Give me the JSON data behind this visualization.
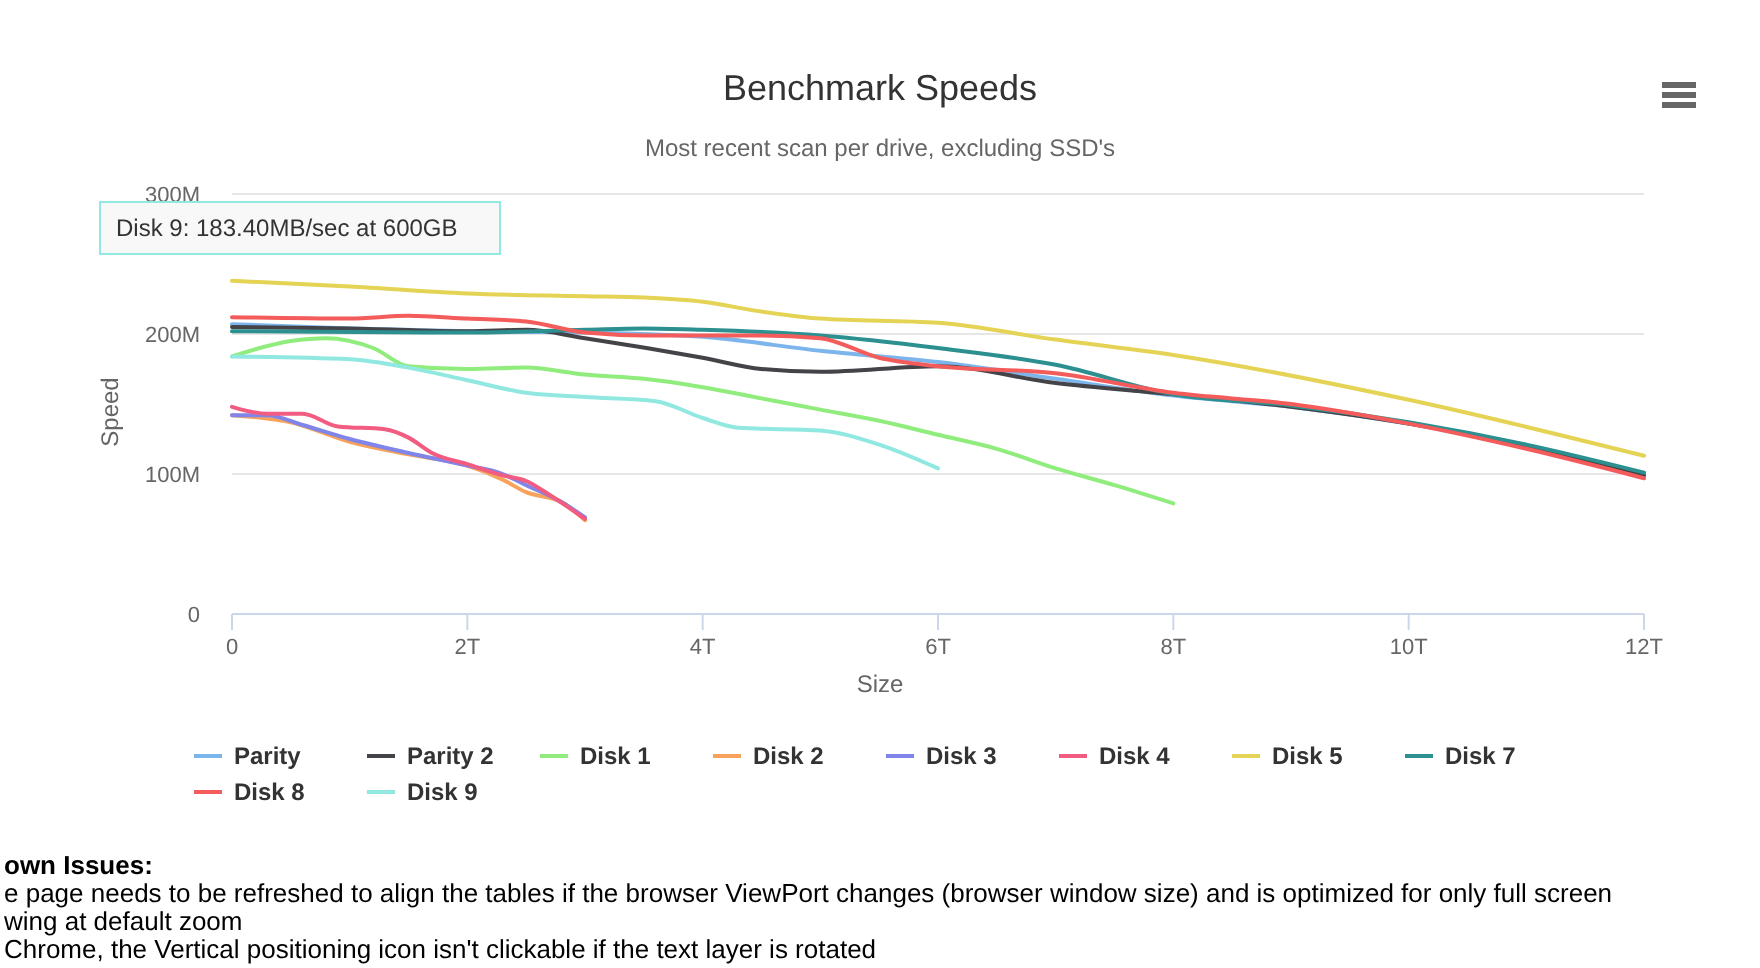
{
  "chart_data": {
    "type": "line",
    "title": "Benchmark Speeds",
    "subtitle": "Most recent scan per drive, excluding SSD's",
    "xlabel": "Size",
    "ylabel": "Speed",
    "xlim": [
      0,
      12
    ],
    "xticks": [
      0,
      {
        "value": 2,
        "label": "2T"
      },
      {
        "value": 4,
        "label": "4T"
      },
      {
        "value": 6,
        "label": "6T"
      },
      {
        "value": 8,
        "label": "8T"
      },
      {
        "value": 10,
        "label": "10T"
      },
      {
        "value": 12,
        "label": "12T"
      }
    ],
    "ylim": [
      0,
      300
    ],
    "yticks": [
      0,
      {
        "value": 100,
        "label": "100M"
      },
      {
        "value": 200,
        "label": "200M"
      },
      {
        "value": 300,
        "label": "300M"
      }
    ],
    "grid": "y",
    "legend": "bottom",
    "marker": "none",
    "line_style": "solid",
    "series": [
      {
        "name": "Parity",
        "color": "#7cb5ec",
        "x": [
          0,
          1,
          2,
          3,
          4,
          5,
          6,
          7,
          8,
          9,
          10,
          11,
          12
        ],
        "values": [
          207,
          204,
          202,
          201,
          198,
          188,
          180,
          168,
          156,
          148,
          136,
          120,
          100
        ]
      },
      {
        "name": "Parity 2",
        "color": "#434348",
        "x": [
          0,
          1,
          2,
          2.5,
          3,
          4,
          4.5,
          5,
          6,
          7,
          8,
          9,
          10,
          11,
          12
        ],
        "values": [
          205,
          204,
          202,
          203,
          197,
          183,
          175,
          173,
          177,
          165,
          157,
          148,
          136,
          120,
          99
        ]
      },
      {
        "name": "Disk 1",
        "color": "#90ed7d",
        "x": [
          0,
          0.5,
          0.8,
          1.2,
          1.5,
          2,
          2.5,
          3,
          3.5,
          4,
          4.5,
          5,
          5.5,
          6,
          6.5,
          7,
          7.5,
          8
        ],
        "values": [
          184,
          195,
          197,
          190,
          177,
          175,
          176,
          171,
          168,
          162,
          154,
          146,
          138,
          128,
          118,
          104,
          92,
          79
        ]
      },
      {
        "name": "Disk 2",
        "color": "#f7a35c",
        "x": [
          0,
          0.5,
          1,
          1.5,
          2,
          2.3,
          2.5,
          2.8,
          3
        ],
        "values": [
          142,
          137,
          123,
          114,
          106,
          96,
          87,
          80,
          67
        ]
      },
      {
        "name": "Disk 3",
        "color": "#8085e9",
        "x": [
          0,
          0.3,
          0.6,
          1,
          1.5,
          2,
          2.3,
          2.5,
          2.8,
          3
        ],
        "values": [
          142,
          142,
          135,
          125,
          115,
          106,
          100,
          92,
          80,
          69
        ]
      },
      {
        "name": "Disk 4",
        "color": "#f15c80",
        "x": [
          0,
          0.3,
          0.6,
          0.9,
          1.3,
          1.5,
          1.7,
          2,
          2.3,
          2.5,
          2.7,
          3
        ],
        "values": [
          148,
          143,
          143,
          134,
          132,
          126,
          115,
          107,
          99,
          95,
          85,
          68
        ]
      },
      {
        "name": "Disk 5",
        "color": "#e4d354",
        "x": [
          0,
          1,
          2,
          3,
          3.5,
          4,
          4.5,
          5,
          6,
          7,
          8,
          10,
          12
        ],
        "values": [
          238,
          234,
          229,
          227,
          226,
          223,
          216,
          211,
          208,
          196,
          185,
          153,
          113
        ]
      },
      {
        "name": "Disk 7",
        "color": "#2b908f",
        "x": [
          0,
          2,
          3,
          3.5,
          4,
          5,
          6,
          7,
          8,
          9,
          10,
          11,
          12
        ],
        "values": [
          202,
          201,
          203,
          204,
          203,
          199,
          190,
          178,
          157,
          149,
          137,
          121,
          101
        ]
      },
      {
        "name": "Disk 8",
        "color": "#f45b5b",
        "x": [
          0,
          1,
          1.5,
          2,
          2.5,
          3,
          3.5,
          4,
          4.5,
          5,
          5.5,
          6,
          7,
          8,
          9,
          10,
          11,
          12
        ],
        "values": [
          212,
          211,
          213,
          211,
          209,
          201,
          199,
          199,
          199,
          197,
          183,
          177,
          172,
          158,
          150,
          136,
          118,
          97
        ]
      },
      {
        "name": "Disk 9",
        "color": "#91e8e1",
        "x": [
          0,
          1,
          1.5,
          2,
          2.5,
          3,
          3.6,
          4,
          4.3,
          5,
          5.5,
          6
        ],
        "values": [
          184,
          182,
          176,
          167,
          158,
          155,
          152,
          140,
          133,
          131,
          121,
          104
        ]
      }
    ],
    "annotations": [
      "Disk 9: 183.40MB/sec at 600GB",
      "own Issues:",
      "e page needs to be refreshed to align the tables if the browser ViewPort changes (browser window size) and is optimized for only full screen",
      "wing at default zoom",
      "Chrome, the Vertical positioning icon isn't clickable if the text layer is rotated"
    ]
  }
}
